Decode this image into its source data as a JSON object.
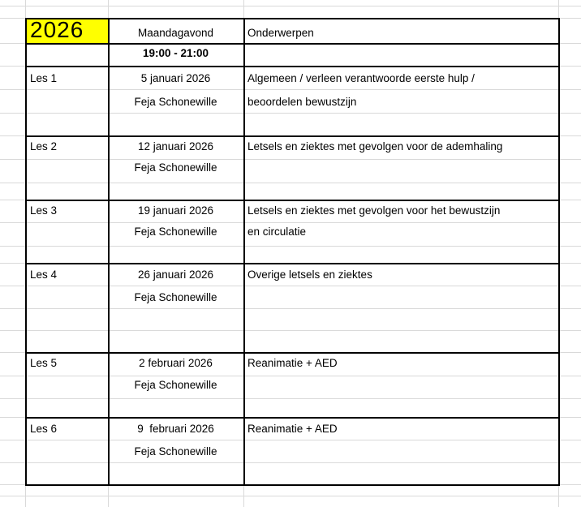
{
  "sheet": {
    "year": "2026",
    "day_header": "Maandagavond",
    "topics_header": "Onderwerpen",
    "time_range": "19:00 - 21:00",
    "highlight_color": "#FFFF00",
    "gridline_color": "#d9d9d9",
    "border_color": "#000000",
    "text_color": "#000000"
  },
  "lessons": [
    {
      "label": "Les 1",
      "date": "5 januari 2026",
      "instructor": "Feja Schonewille",
      "topic_lines": [
        "Algemeen / verleen verantwoorde eerste hulp /",
        "beoordelen bewustzijn"
      ]
    },
    {
      "label": "Les 2",
      "date": "12 januari 2026",
      "instructor": "Feja Schonewille",
      "topic_lines": [
        "Letsels en ziektes met gevolgen voor de ademhaling"
      ]
    },
    {
      "label": "Les 3",
      "date": "19 januari 2026",
      "instructor": "Feja Schonewille",
      "topic_lines": [
        "Letsels en ziektes met gevolgen voor het bewustzijn",
        "en circulatie"
      ]
    },
    {
      "label": "Les 4",
      "date": "26 januari 2026",
      "instructor": "Feja Schonewille",
      "topic_lines": [
        "Overige letsels en ziektes"
      ]
    },
    {
      "label": "Les 5",
      "date": "2 februari 2026",
      "instructor": "Feja Schonewille",
      "topic_lines": [
        "Reanimatie + AED"
      ]
    },
    {
      "label": "Les 6",
      "date": "9  februari 2026",
      "instructor": "Feja Schonewille",
      "topic_lines": [
        "Reanimatie + AED"
      ]
    }
  ]
}
